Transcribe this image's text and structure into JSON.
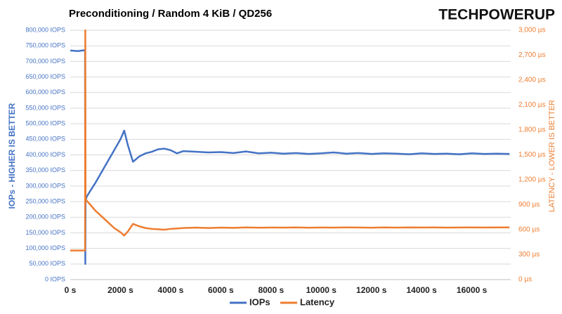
{
  "chart_data": {
    "type": "line",
    "title": "Preconditioning / Random 4 KiB / QD256",
    "logo": "TECHPOWERUP",
    "ylabel": "IOPs - HIGHER IS BETTER",
    "y2label": "LATENCY - LOWER IS BETTER",
    "x": [
      0,
      300,
      590,
      600,
      610,
      650,
      800,
      1000,
      1250,
      1500,
      1750,
      2000,
      2150,
      2300,
      2500,
      2750,
      3000,
      3250,
      3500,
      3750,
      4000,
      4250,
      4500,
      5000,
      5500,
      6000,
      6500,
      7000,
      7500,
      8000,
      8500,
      9000,
      9500,
      10000,
      10500,
      11000,
      11500,
      12000,
      12500,
      13000,
      13500,
      14000,
      14500,
      15000,
      15500,
      16000,
      16500,
      17000,
      17500
    ],
    "series": [
      {
        "name": "IOPs",
        "color": "#4472c4",
        "axis": "y",
        "values": [
          735000,
          733000,
          736000,
          50000,
          250000,
          265000,
          285000,
          310000,
          345000,
          380000,
          415000,
          450000,
          478000,
          430000,
          378000,
          395000,
          405000,
          410000,
          418000,
          420000,
          415000,
          405000,
          412000,
          410000,
          408000,
          409000,
          406000,
          411000,
          405000,
          407000,
          404000,
          406000,
          403000,
          405000,
          408000,
          404000,
          406000,
          403000,
          405000,
          404000,
          402000,
          405000,
          403000,
          404000,
          402000,
          405000,
          403000,
          404000,
          403000
        ]
      },
      {
        "name": "Latency",
        "color": "#ed7d31",
        "axis": "y2",
        "values": [
          350,
          350,
          350,
          3000,
          960,
          950,
          900,
          830,
          760,
          690,
          620,
          570,
          530,
          580,
          670,
          640,
          620,
          610,
          605,
          600,
          610,
          615,
          620,
          625,
          620,
          625,
          622,
          628,
          624,
          626,
          625,
          627,
          624,
          626,
          625,
          627,
          626,
          624,
          627,
          625,
          628,
          626,
          627,
          625,
          626,
          627,
          626,
          628,
          627
        ]
      }
    ],
    "xlim": [
      0,
      17550
    ],
    "xticks": [
      {
        "value": 0,
        "label": "0 s"
      },
      {
        "value": 2000,
        "label": "2000 s"
      },
      {
        "value": 4000,
        "label": "4000 s"
      },
      {
        "value": 6000,
        "label": "6000 s"
      },
      {
        "value": 8000,
        "label": "8000 s"
      },
      {
        "value": 10000,
        "label": "10000 s"
      },
      {
        "value": 12000,
        "label": "12000 s"
      },
      {
        "value": 14000,
        "label": "14000 s"
      },
      {
        "value": 16000,
        "label": "16000 s"
      }
    ],
    "ylim": [
      0,
      800000
    ],
    "yticks": [
      {
        "value": 0,
        "label": "0 IOPS"
      },
      {
        "value": 50000,
        "label": "50,000 IOPS"
      },
      {
        "value": 100000,
        "label": "100,000 IOPS"
      },
      {
        "value": 150000,
        "label": "150,000 IOPS"
      },
      {
        "value": 200000,
        "label": "200,000 IOPS"
      },
      {
        "value": 250000,
        "label": "250,000 IOPS"
      },
      {
        "value": 300000,
        "label": "300,000 IOPS"
      },
      {
        "value": 350000,
        "label": "350,000 IOPS"
      },
      {
        "value": 400000,
        "label": "400,000 IOPS"
      },
      {
        "value": 450000,
        "label": "450,000 IOPS"
      },
      {
        "value": 500000,
        "label": "500,000 IOPS"
      },
      {
        "value": 550000,
        "label": "550,000 IOPS"
      },
      {
        "value": 600000,
        "label": "600,000 IOPS"
      },
      {
        "value": 650000,
        "label": "650,000 IOPS"
      },
      {
        "value": 700000,
        "label": "700,000 IOPS"
      },
      {
        "value": 750000,
        "label": "750,000 IOPS"
      },
      {
        "value": 800000,
        "label": "800,000 IOPS"
      }
    ],
    "y2lim": [
      0,
      3000
    ],
    "y2ticks": [
      {
        "value": 0,
        "label": "0 µs"
      },
      {
        "value": 300,
        "label": "300 µs"
      },
      {
        "value": 600,
        "label": "600 µs"
      },
      {
        "value": 900,
        "label": "900 µs"
      },
      {
        "value": 1200,
        "label": "1,200 µs"
      },
      {
        "value": 1500,
        "label": "1,500 µs"
      },
      {
        "value": 1800,
        "label": "1,800 µs"
      },
      {
        "value": 2100,
        "label": "2,100 µs"
      },
      {
        "value": 2400,
        "label": "2,400 µs"
      },
      {
        "value": 2700,
        "label": "2,700 µs"
      },
      {
        "value": 3000,
        "label": "3,000 µs"
      }
    ],
    "grid": true,
    "legend": "bottom"
  }
}
